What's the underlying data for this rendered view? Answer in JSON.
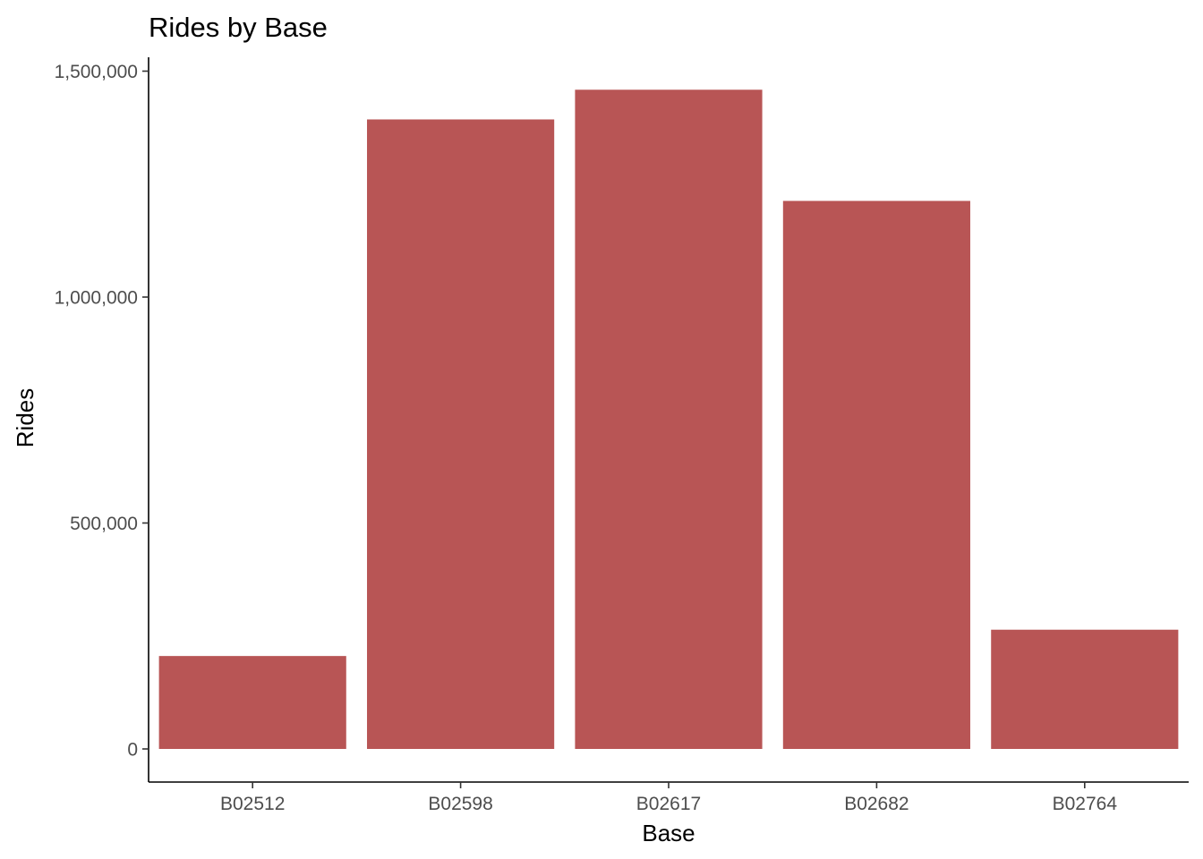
{
  "chart_data": {
    "type": "bar",
    "title": "Rides by Base",
    "xlabel": "Base",
    "ylabel": "Rides",
    "categories": [
      "B02512",
      "B02598",
      "B02617",
      "B02682",
      "B02764"
    ],
    "values": [
      205673,
      1393113,
      1458853,
      1212789,
      263899
    ],
    "ylim": [
      -75000,
      1520000
    ],
    "yticks": [
      0,
      500000,
      1000000,
      1500000
    ],
    "ytick_labels": [
      "0",
      "500,000",
      "1,000,000",
      "1,500,000"
    ],
    "bar_color": "#b85555",
    "grid": false,
    "legend": "none"
  }
}
